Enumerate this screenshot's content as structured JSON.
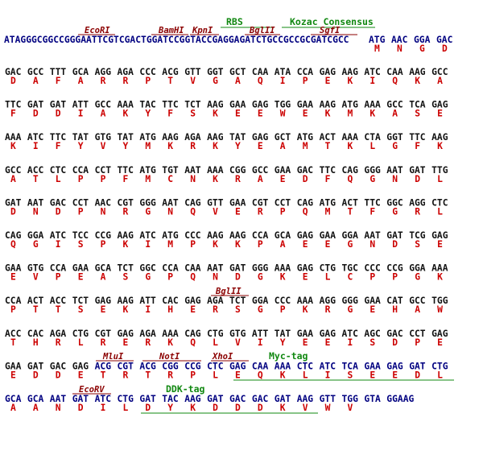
{
  "colors": {
    "dna_black": "#111111",
    "dna_blue": "#000080",
    "amino_acid": "#cc0000",
    "restriction_site": "#8b0000",
    "feature": "#118811"
  },
  "leader": {
    "dna": "ATAGGGCGGCCGGGAATTCGTCGACTGGATCCGGTACCGAGGAGATCTGCCGCCGCGATCGCC",
    "start_codons": [
      "ATG",
      "AAC",
      "GGA",
      "GAC"
    ],
    "start_aas": [
      "M",
      "N",
      "G",
      "D"
    ]
  },
  "rows": [
    {
      "codons": [
        "GAC",
        "GCC",
        "TTT",
        "GCA",
        "AGG",
        "AGA",
        "CCC",
        "ACG",
        "GTT",
        "GGT",
        "GCT",
        "CAA",
        "ATA",
        "CCA",
        "GAG",
        "AAG",
        "ATC",
        "CAA",
        "AAG",
        "GCC"
      ],
      "aas": [
        "D",
        "A",
        "F",
        "A",
        "R",
        "R",
        "P",
        "T",
        "V",
        "G",
        "A",
        "Q",
        "I",
        "P",
        "E",
        "K",
        "I",
        "Q",
        "K",
        "A"
      ]
    },
    {
      "codons": [
        "TTC",
        "GAT",
        "GAT",
        "ATT",
        "GCC",
        "AAA",
        "TAC",
        "TTC",
        "TCT",
        "AAG",
        "GAA",
        "GAG",
        "TGG",
        "GAA",
        "AAG",
        "ATG",
        "AAA",
        "GCC",
        "TCA",
        "GAG"
      ],
      "aas": [
        "F",
        "D",
        "D",
        "I",
        "A",
        "K",
        "Y",
        "F",
        "S",
        "K",
        "E",
        "E",
        "W",
        "E",
        "K",
        "M",
        "K",
        "A",
        "S",
        "E"
      ]
    },
    {
      "codons": [
        "AAA",
        "ATC",
        "TTC",
        "TAT",
        "GTG",
        "TAT",
        "ATG",
        "AAG",
        "AGA",
        "AAG",
        "TAT",
        "GAG",
        "GCT",
        "ATG",
        "ACT",
        "AAA",
        "CTA",
        "GGT",
        "TTC",
        "AAG"
      ],
      "aas": [
        "K",
        "I",
        "F",
        "Y",
        "V",
        "Y",
        "M",
        "K",
        "R",
        "K",
        "Y",
        "E",
        "A",
        "M",
        "T",
        "K",
        "L",
        "G",
        "F",
        "K"
      ]
    },
    {
      "codons": [
        "GCC",
        "ACC",
        "CTC",
        "CCA",
        "CCT",
        "TTC",
        "ATG",
        "TGT",
        "AAT",
        "AAA",
        "CGG",
        "GCC",
        "GAA",
        "GAC",
        "TTC",
        "CAG",
        "GGG",
        "AAT",
        "GAT",
        "TTG"
      ],
      "aas": [
        "A",
        "T",
        "L",
        "P",
        "P",
        "F",
        "M",
        "C",
        "N",
        "K",
        "R",
        "A",
        "E",
        "D",
        "F",
        "Q",
        "G",
        "N",
        "D",
        "L"
      ]
    },
    {
      "codons": [
        "GAT",
        "AAT",
        "GAC",
        "CCT",
        "AAC",
        "CGT",
        "GGG",
        "AAT",
        "CAG",
        "GTT",
        "GAA",
        "CGT",
        "CCT",
        "CAG",
        "ATG",
        "ACT",
        "TTC",
        "GGC",
        "AGG",
        "CTC"
      ],
      "aas": [
        "D",
        "N",
        "D",
        "P",
        "N",
        "R",
        "G",
        "N",
        "Q",
        "V",
        "E",
        "R",
        "P",
        "Q",
        "M",
        "T",
        "F",
        "G",
        "R",
        "L"
      ]
    },
    {
      "codons": [
        "CAG",
        "GGA",
        "ATC",
        "TCC",
        "CCG",
        "AAG",
        "ATC",
        "ATG",
        "CCC",
        "AAG",
        "AAG",
        "CCA",
        "GCA",
        "GAG",
        "GAA",
        "GGA",
        "AAT",
        "GAT",
        "TCG",
        "GAG"
      ],
      "aas": [
        "Q",
        "G",
        "I",
        "S",
        "P",
        "K",
        "I",
        "M",
        "P",
        "K",
        "K",
        "P",
        "A",
        "E",
        "E",
        "G",
        "N",
        "D",
        "S",
        "E"
      ]
    },
    {
      "codons": [
        "GAA",
        "GTG",
        "CCA",
        "GAA",
        "GCA",
        "TCT",
        "GGC",
        "CCA",
        "CAA",
        "AAT",
        "GAT",
        "GGG",
        "AAA",
        "GAG",
        "CTG",
        "TGC",
        "CCC",
        "CCG",
        "GGA",
        "AAA"
      ],
      "aas": [
        "E",
        "V",
        "P",
        "E",
        "A",
        "S",
        "G",
        "P",
        "Q",
        "N",
        "D",
        "G",
        "K",
        "E",
        "L",
        "C",
        "P",
        "P",
        "G",
        "K"
      ]
    },
    {
      "codons": [
        "CCA",
        "ACT",
        "ACC",
        "TCT",
        "GAG",
        "AAG",
        "ATT",
        "CAC",
        "GAG",
        "AGA",
        "TCT",
        "GGA",
        "CCC",
        "AAA",
        "AGG",
        "GGG",
        "GAA",
        "CAT",
        "GCC",
        "TGG"
      ],
      "aas": [
        "P",
        "T",
        "T",
        "S",
        "E",
        "K",
        "I",
        "H",
        "E",
        "R",
        "S",
        "G",
        "P",
        "K",
        "R",
        "G",
        "E",
        "H",
        "A",
        "W"
      ]
    },
    {
      "codons": [
        "ACC",
        "CAC",
        "AGA",
        "CTG",
        "CGT",
        "GAG",
        "AGA",
        "AAA",
        "CAG",
        "CTG",
        "GTG",
        "ATT",
        "TAT",
        "GAA",
        "GAG",
        "ATC",
        "AGC",
        "GAC",
        "CCT",
        "GAG"
      ],
      "aas": [
        "T",
        "H",
        "R",
        "L",
        "R",
        "E",
        "R",
        "K",
        "Q",
        "L",
        "V",
        "I",
        "Y",
        "E",
        "E",
        "I",
        "S",
        "D",
        "P",
        "E"
      ]
    },
    {
      "codons": [
        "GAA",
        "GAT",
        "GAC",
        "GAG",
        "ACG",
        "CGT",
        "ACG",
        "CGG",
        "CCG",
        "CTC",
        "GAG",
        "CAA",
        "AAA",
        "CTC",
        "ATC",
        "TCA",
        "GAA",
        "GAG",
        "GAT",
        "CTG"
      ],
      "aas": [
        "E",
        "D",
        "D",
        "E",
        "T",
        "R",
        "T",
        "R",
        "P",
        "L",
        "E",
        "Q",
        "K",
        "L",
        "I",
        "S",
        "E",
        "E",
        "D",
        "L"
      ]
    },
    {
      "codons": [
        "GCA",
        "GCA",
        "AAT",
        "GAT",
        "ATC",
        "CTG",
        "GAT",
        "TAC",
        "AAG",
        "GAT",
        "GAC",
        "GAC",
        "GAT",
        "AAG",
        "GTT",
        "TGG",
        "GTA",
        "GGAAG"
      ],
      "aas": [
        "A",
        "A",
        "N",
        "D",
        "I",
        "L",
        "D",
        "Y",
        "K",
        "D",
        "D",
        "D",
        "K",
        "V",
        "W",
        "V",
        "",
        ""
      ]
    }
  ],
  "restriction_sites": {
    "ecori": "EcoRI",
    "bamhi": "BamHI",
    "kpni": "KpnI",
    "bglii": "BglII",
    "sgfi": "SgfI",
    "bglii_row8": "BglII",
    "mlui": "MluI",
    "noti": "NotI",
    "xhoi": "XhoI",
    "ecorv": "EcoRV"
  },
  "features": {
    "rbs": "RBS",
    "kozac": "Kozac Consensus",
    "myc_tag": "Myc-tag",
    "ddk_tag": "DDK-tag"
  }
}
